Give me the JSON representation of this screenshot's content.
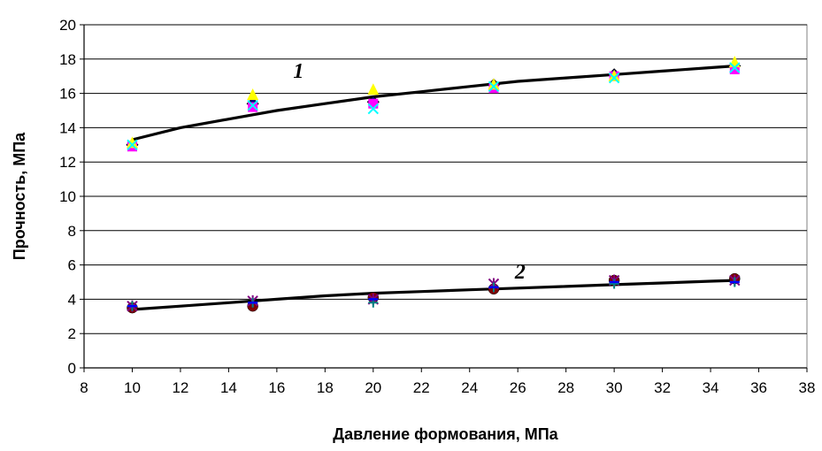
{
  "chart_data": {
    "type": "scatter",
    "title": "",
    "xlabel": "Давление формования, МПа",
    "ylabel": "Прочность, МПа",
    "xlim": [
      8,
      38
    ],
    "ylim": [
      0,
      20
    ],
    "x_ticks": [
      8,
      10,
      12,
      14,
      16,
      18,
      20,
      22,
      24,
      26,
      28,
      30,
      32,
      34,
      36,
      38
    ],
    "y_ticks": [
      0,
      2,
      4,
      6,
      8,
      10,
      12,
      14,
      16,
      18,
      20
    ],
    "grid": "horizontal",
    "legend": "none",
    "annotations": [
      {
        "text": "1",
        "x": 16.9,
        "y": 16.9
      },
      {
        "text": "2",
        "x": 26.1,
        "y": 5.2
      }
    ],
    "series": [
      {
        "marker": "diamond",
        "color": "#000080",
        "x": [
          10,
          15,
          20,
          25,
          30,
          35
        ],
        "y": [
          13.0,
          15.4,
          15.5,
          16.5,
          17.1,
          17.6
        ]
      },
      {
        "marker": "square",
        "color": "#FF00FF",
        "x": [
          10,
          15,
          20,
          25,
          30,
          35
        ],
        "y": [
          12.9,
          15.2,
          15.4,
          16.3,
          17.0,
          17.4
        ]
      },
      {
        "marker": "triangle",
        "color": "#FFFF00",
        "x": [
          10,
          15,
          20,
          25,
          30,
          35
        ],
        "y": [
          13.1,
          15.9,
          16.2,
          16.5,
          17.0,
          17.8
        ]
      },
      {
        "marker": "x",
        "color": "#00FFFF",
        "x": [
          10,
          15,
          20,
          25,
          30,
          35
        ],
        "y": [
          13.0,
          15.3,
          15.1,
          16.4,
          16.9,
          17.5
        ]
      },
      {
        "marker": "circle",
        "color": "#800000",
        "x": [
          10,
          15,
          20,
          25,
          30,
          35
        ],
        "y": [
          3.5,
          3.6,
          4.1,
          4.6,
          5.1,
          5.2
        ]
      },
      {
        "marker": "asterisk",
        "color": "#800080",
        "x": [
          10,
          15,
          20,
          25,
          30,
          35
        ],
        "y": [
          3.6,
          3.9,
          4.0,
          4.9,
          5.1,
          5.1
        ]
      },
      {
        "marker": "plus",
        "color": "#008080",
        "x": [
          10,
          15,
          20,
          25,
          30,
          35
        ],
        "y": [
          3.6,
          3.8,
          3.8,
          4.7,
          4.9,
          5.0
        ]
      },
      {
        "marker": "dash",
        "color": "#0000FF",
        "x": [
          10,
          15,
          20,
          25,
          30,
          35
        ],
        "y": [
          3.6,
          3.8,
          4.0,
          4.7,
          5.0,
          5.0
        ]
      }
    ],
    "trend_lines": [
      {
        "name": "1",
        "color": "#000000",
        "x": [
          10,
          12,
          14,
          16,
          18,
          20,
          22,
          24,
          26,
          28,
          30,
          32,
          34,
          35
        ],
        "y": [
          13.3,
          14.0,
          14.5,
          15.0,
          15.4,
          15.8,
          16.1,
          16.4,
          16.7,
          16.9,
          17.1,
          17.3,
          17.5,
          17.6
        ]
      },
      {
        "name": "2",
        "color": "#000000",
        "x": [
          10,
          12,
          14,
          16,
          18,
          20,
          22,
          24,
          26,
          28,
          30,
          32,
          34,
          35
        ],
        "y": [
          3.4,
          3.6,
          3.8,
          4.0,
          4.2,
          4.35,
          4.45,
          4.55,
          4.65,
          4.75,
          4.85,
          4.95,
          5.05,
          5.1
        ]
      }
    ]
  }
}
